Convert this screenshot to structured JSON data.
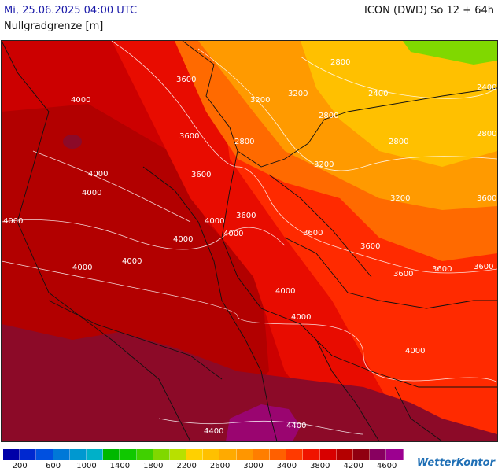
{
  "header": {
    "date_time": "Mi, 25.06.2025 04:00 UTC",
    "model": "ICON (DWD) So 12 + 64h",
    "parameter": "Nullgradgrenze [m]"
  },
  "legend": {
    "colors": [
      "#0000a8",
      "#0028d0",
      "#0050e0",
      "#0078d8",
      "#0098d0",
      "#00b0c8",
      "#00b800",
      "#10c800",
      "#40d000",
      "#80d800",
      "#b8e000",
      "#ffd000",
      "#ffc000",
      "#ffaa00",
      "#ff9600",
      "#ff7e00",
      "#ff6000",
      "#ff3a00",
      "#f01400",
      "#d80000",
      "#b40000",
      "#900010",
      "#880060",
      "#9c0090"
    ],
    "labels": [
      "200",
      "600",
      "1000",
      "1400",
      "1800",
      "2200",
      "2600",
      "3000",
      "3400",
      "3800",
      "4200",
      "4600"
    ]
  },
  "map": {
    "contour_labels": [
      "3600",
      "4000",
      "4000",
      "4000",
      "4000",
      "2800",
      "3200",
      "3200",
      "2800",
      "2400",
      "2400",
      "2800",
      "2800",
      "3200",
      "2800",
      "3200",
      "3600",
      "3600",
      "3600",
      "4000",
      "4000",
      "4000",
      "3600",
      "3600",
      "3600",
      "3600",
      "4000",
      "4000",
      "4000",
      "4000",
      "4400",
      "4400",
      "3600",
      "4000",
      "3600"
    ],
    "region_colors": {
      "far_west": "#cc0000",
      "west_dark": "#b20000",
      "south_dark": "#8c0a28",
      "alps_purple": "#9a0570",
      "central_red": "#e80c00",
      "east_red": "#ff2a00",
      "orange": "#ff6a00",
      "light_orange": "#ff9a00",
      "yellow_orange": "#ffc000",
      "green": "#80d800"
    }
  },
  "branding": {
    "name": "WetterKontor"
  }
}
